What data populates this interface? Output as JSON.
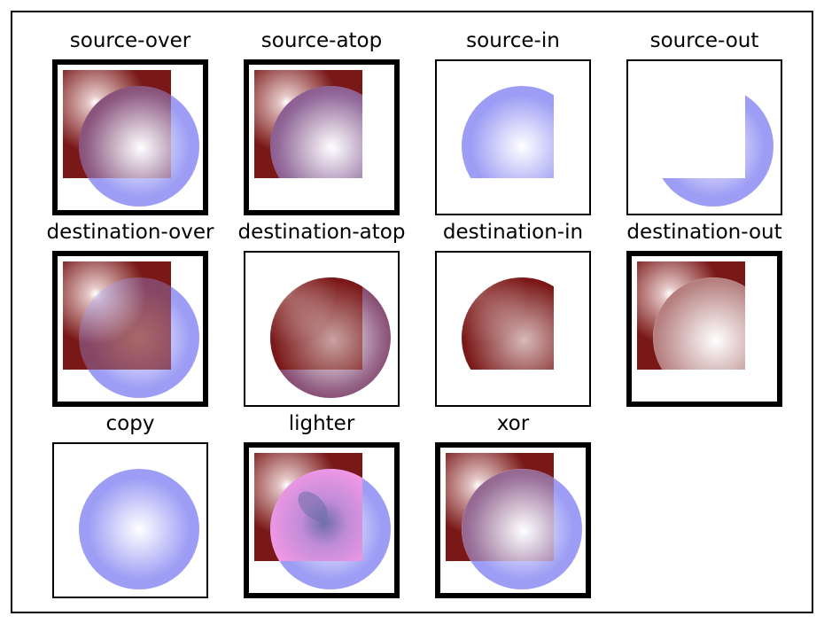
{
  "colors": {
    "destination_dark": "#7a1717",
    "destination_light": "#ffffff",
    "source_light": "#ffffff",
    "source_blue": "#9d9df5",
    "lighter_pink": "#ff9be8",
    "lighter_core": "#6e6ea8"
  },
  "tiles": [
    {
      "label": "source-over",
      "mode": "source-over",
      "border": "thick",
      "icon": "composite-source-over"
    },
    {
      "label": "source-atop",
      "mode": "source-atop",
      "border": "thick",
      "icon": "composite-source-atop"
    },
    {
      "label": "source-in",
      "mode": "source-in",
      "border": "thin",
      "icon": "composite-source-in"
    },
    {
      "label": "source-out",
      "mode": "source-out",
      "border": "thin",
      "icon": "composite-source-out"
    },
    {
      "label": "destination-over",
      "mode": "destination-over",
      "border": "thick",
      "icon": "composite-destination-over"
    },
    {
      "label": "destination-atop",
      "mode": "destination-atop",
      "border": "thin",
      "icon": "composite-destination-atop"
    },
    {
      "label": "destination-in",
      "mode": "destination-in",
      "border": "thin",
      "icon": "composite-destination-in"
    },
    {
      "label": "destination-out",
      "mode": "destination-out",
      "border": "thick",
      "icon": "composite-destination-out"
    },
    {
      "label": "copy",
      "mode": "copy",
      "border": "thin",
      "icon": "composite-copy"
    },
    {
      "label": "lighter",
      "mode": "lighter",
      "border": "thick",
      "icon": "composite-lighter"
    },
    {
      "label": "xor",
      "mode": "xor",
      "border": "thick",
      "icon": "composite-xor"
    }
  ]
}
